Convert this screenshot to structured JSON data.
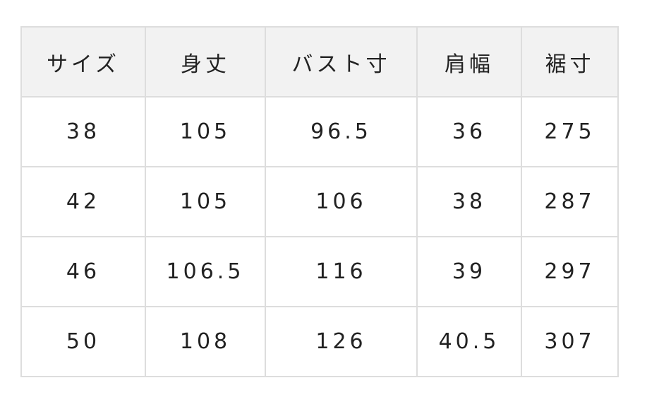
{
  "table": {
    "headers": [
      "サイズ",
      "身丈",
      "バスト寸",
      "肩幅",
      "裾寸"
    ],
    "rows": [
      [
        "38",
        "105",
        "96.5",
        "36",
        "275"
      ],
      [
        "42",
        "105",
        "106",
        "38",
        "287"
      ],
      [
        "46",
        "106.5",
        "116",
        "39",
        "297"
      ],
      [
        "50",
        "108",
        "126",
        "40.5",
        "307"
      ]
    ]
  },
  "colors": {
    "header_bg": "#f2f2f2",
    "border": "#dddddd",
    "text": "#222222"
  }
}
